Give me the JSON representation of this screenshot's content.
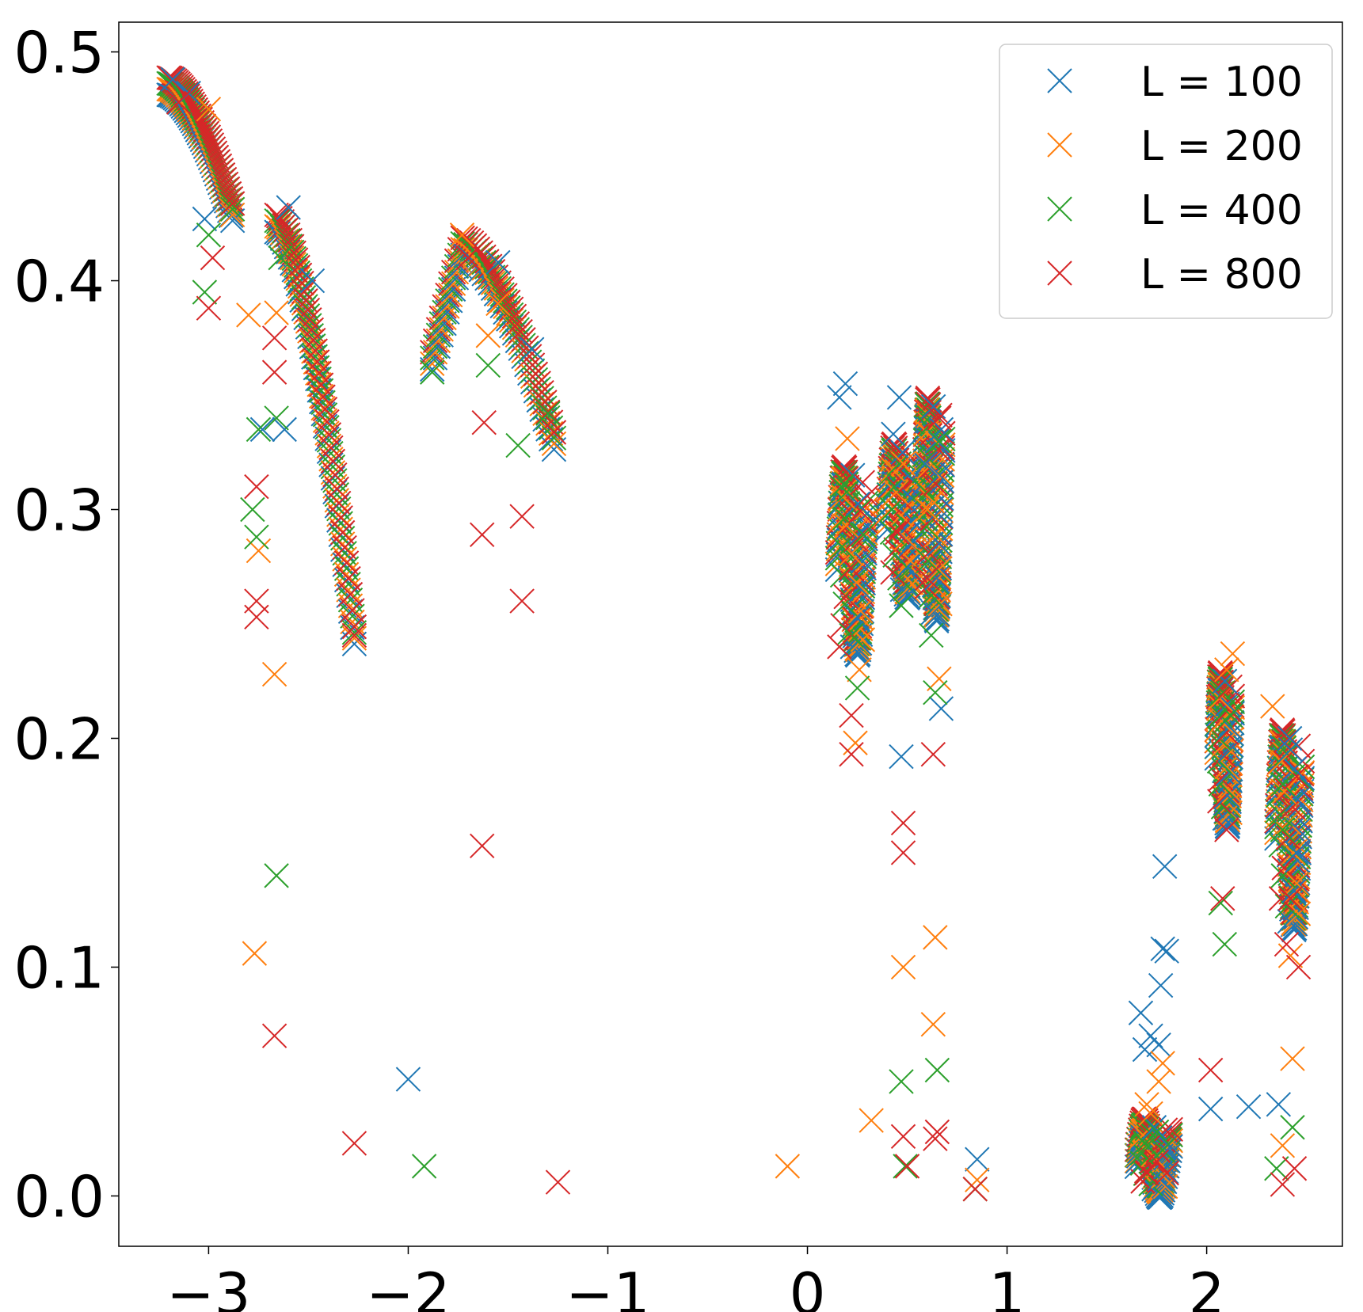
{
  "chart_data": {
    "type": "scatter",
    "marker": "x",
    "title": "",
    "xlabel": "",
    "ylabel": "",
    "xlim": [
      -3.45,
      2.68
    ],
    "ylim": [
      -0.022,
      0.513
    ],
    "x_ticks": [
      -3,
      -2,
      -1,
      0,
      1,
      2
    ],
    "x_tick_labels": [
      "−3",
      "−2",
      "−1",
      "0",
      "1",
      "2"
    ],
    "y_ticks": [
      0.0,
      0.1,
      0.2,
      0.3,
      0.4,
      0.5
    ],
    "y_tick_labels": [
      "0.0",
      "0.1",
      "0.2",
      "0.3",
      "0.4",
      "0.5"
    ],
    "grid": false,
    "legend_position": "top-right",
    "series": [
      {
        "name": "L = 100",
        "color": "#1f77b4",
        "points": [
          [
            -3.18,
            0.488
          ],
          [
            -3.1,
            0.482
          ],
          [
            -3.02,
            0.427
          ],
          [
            -2.6,
            0.432
          ],
          [
            -2.48,
            0.4
          ],
          [
            -2.73,
            0.335
          ],
          [
            -2.62,
            0.335
          ],
          [
            -2.0,
            0.051
          ],
          [
            -1.55,
            0.408
          ],
          [
            -1.38,
            0.37
          ],
          [
            0.16,
            0.349
          ],
          [
            0.19,
            0.355
          ],
          [
            0.46,
            0.349
          ],
          [
            0.47,
            0.192
          ],
          [
            0.43,
            0.333
          ],
          [
            0.59,
            0.32
          ],
          [
            0.67,
            0.335
          ],
          [
            0.67,
            0.213
          ],
          [
            0.85,
            0.016
          ],
          [
            1.67,
            0.08
          ],
          [
            1.69,
            0.064
          ],
          [
            1.72,
            0.07
          ],
          [
            1.76,
            0.066
          ],
          [
            1.78,
            0.108
          ],
          [
            1.8,
            0.107
          ],
          [
            1.77,
            0.092
          ],
          [
            1.79,
            0.144
          ],
          [
            2.02,
            0.038
          ],
          [
            2.21,
            0.039
          ],
          [
            2.36,
            0.04
          ],
          [
            2.42,
            0.195
          ],
          [
            2.45,
            0.15
          ]
        ]
      },
      {
        "name": "L = 200",
        "color": "#ff7f0e",
        "points": [
          [
            -3.0,
            0.475
          ],
          [
            -2.8,
            0.385
          ],
          [
            -2.75,
            0.282
          ],
          [
            -2.77,
            0.106
          ],
          [
            -2.67,
            0.228
          ],
          [
            -2.66,
            0.386
          ],
          [
            -1.73,
            0.42
          ],
          [
            -1.6,
            0.376
          ],
          [
            -1.55,
            0.39
          ],
          [
            -0.1,
            0.013
          ],
          [
            0.2,
            0.331
          ],
          [
            0.24,
            0.198
          ],
          [
            0.26,
            0.23
          ],
          [
            0.32,
            0.033
          ],
          [
            0.48,
            0.32
          ],
          [
            0.48,
            0.1
          ],
          [
            0.6,
            0.3
          ],
          [
            0.63,
            0.075
          ],
          [
            0.64,
            0.113
          ],
          [
            0.66,
            0.226
          ],
          [
            0.85,
            0.007
          ],
          [
            1.7,
            0.04
          ],
          [
            1.72,
            0.036
          ],
          [
            1.76,
            0.05
          ],
          [
            1.78,
            0.058
          ],
          [
            2.1,
            0.23
          ],
          [
            2.13,
            0.237
          ],
          [
            2.33,
            0.214
          ],
          [
            2.38,
            0.022
          ],
          [
            2.43,
            0.06
          ],
          [
            2.42,
            0.105
          ]
        ]
      },
      {
        "name": "L = 400",
        "color": "#2ca02c",
        "points": [
          [
            -3.0,
            0.42
          ],
          [
            -3.02,
            0.395
          ],
          [
            -2.75,
            0.335
          ],
          [
            -2.78,
            0.3
          ],
          [
            -2.76,
            0.288
          ],
          [
            -2.66,
            0.34
          ],
          [
            -2.66,
            0.14
          ],
          [
            -2.64,
            0.41
          ],
          [
            -1.88,
            0.36
          ],
          [
            -1.92,
            0.013
          ],
          [
            -1.6,
            0.363
          ],
          [
            -1.45,
            0.328
          ],
          [
            -1.3,
            0.342
          ],
          [
            0.17,
            0.31
          ],
          [
            0.22,
            0.245
          ],
          [
            0.25,
            0.222
          ],
          [
            0.28,
            0.289
          ],
          [
            0.47,
            0.258
          ],
          [
            0.47,
            0.05
          ],
          [
            0.49,
            0.013
          ],
          [
            0.62,
            0.245
          ],
          [
            0.64,
            0.22
          ],
          [
            0.65,
            0.055
          ],
          [
            0.66,
            0.33
          ],
          [
            0.84,
            0.003
          ],
          [
            1.7,
            0.022
          ],
          [
            1.75,
            0.028
          ],
          [
            1.78,
            0.02
          ],
          [
            2.07,
            0.128
          ],
          [
            2.09,
            0.11
          ],
          [
            2.12,
            0.21
          ],
          [
            2.35,
            0.012
          ],
          [
            2.38,
            0.16
          ],
          [
            2.43,
            0.03
          ]
        ]
      },
      {
        "name": "L = 800",
        "color": "#d62728",
        "points": [
          [
            -3.15,
            0.478
          ],
          [
            -3.0,
            0.388
          ],
          [
            -2.98,
            0.41
          ],
          [
            -2.76,
            0.31
          ],
          [
            -2.76,
            0.26
          ],
          [
            -2.76,
            0.253
          ],
          [
            -2.67,
            0.375
          ],
          [
            -2.67,
            0.36
          ],
          [
            -2.67,
            0.07
          ],
          [
            -2.27,
            0.245
          ],
          [
            -2.27,
            0.023
          ],
          [
            -1.7,
            0.41
          ],
          [
            -1.63,
            0.153
          ],
          [
            -1.62,
            0.338
          ],
          [
            -1.63,
            0.289
          ],
          [
            -1.43,
            0.26
          ],
          [
            -1.43,
            0.297
          ],
          [
            -1.25,
            0.006
          ],
          [
            0.16,
            0.24
          ],
          [
            0.22,
            0.193
          ],
          [
            0.22,
            0.21
          ],
          [
            0.45,
            0.29
          ],
          [
            0.48,
            0.163
          ],
          [
            0.48,
            0.15
          ],
          [
            0.48,
            0.026
          ],
          [
            0.5,
            0.013
          ],
          [
            0.6,
            0.27
          ],
          [
            0.63,
            0.193
          ],
          [
            0.64,
            0.025
          ],
          [
            0.65,
            0.028
          ],
          [
            0.66,
            0.34
          ],
          [
            0.84,
            0.003
          ],
          [
            1.7,
            0.01
          ],
          [
            1.75,
            0.015
          ],
          [
            1.8,
            0.01
          ],
          [
            2.02,
            0.055
          ],
          [
            2.08,
            0.13
          ],
          [
            2.1,
            0.16
          ],
          [
            2.38,
            0.005
          ],
          [
            2.4,
            0.11
          ],
          [
            2.42,
            0.13
          ],
          [
            2.44,
            0.012
          ],
          [
            2.46,
            0.1
          ]
        ]
      }
    ],
    "clusters": [
      {
        "x": [
          -3.2,
          -2.88
        ],
        "peak": 0.485,
        "end": 0.43
      },
      {
        "x": [
          -2.66,
          -2.27
        ],
        "peak": 0.425,
        "end": 0.245
      },
      {
        "x": [
          -1.88,
          -1.27
        ],
        "peak": 0.415,
        "start": 0.365,
        "end": 0.33
      },
      {
        "x": [
          0.15,
          0.3
        ],
        "top": 0.315,
        "bottom": 0.24
      },
      {
        "x": [
          0.4,
          0.55
        ],
        "top": 0.325,
        "bottom": 0.265
      },
      {
        "x": [
          0.58,
          0.68
        ],
        "top": 0.345,
        "bottom": 0.255
      },
      {
        "x": [
          1.65,
          1.82
        ],
        "top": 0.03,
        "bottom": 0.003
      },
      {
        "x": [
          2.05,
          2.13
        ],
        "top": 0.225,
        "bottom": 0.165
      },
      {
        "x": [
          2.35,
          2.48
        ],
        "top": 0.2,
        "bottom": 0.12
      }
    ]
  }
}
